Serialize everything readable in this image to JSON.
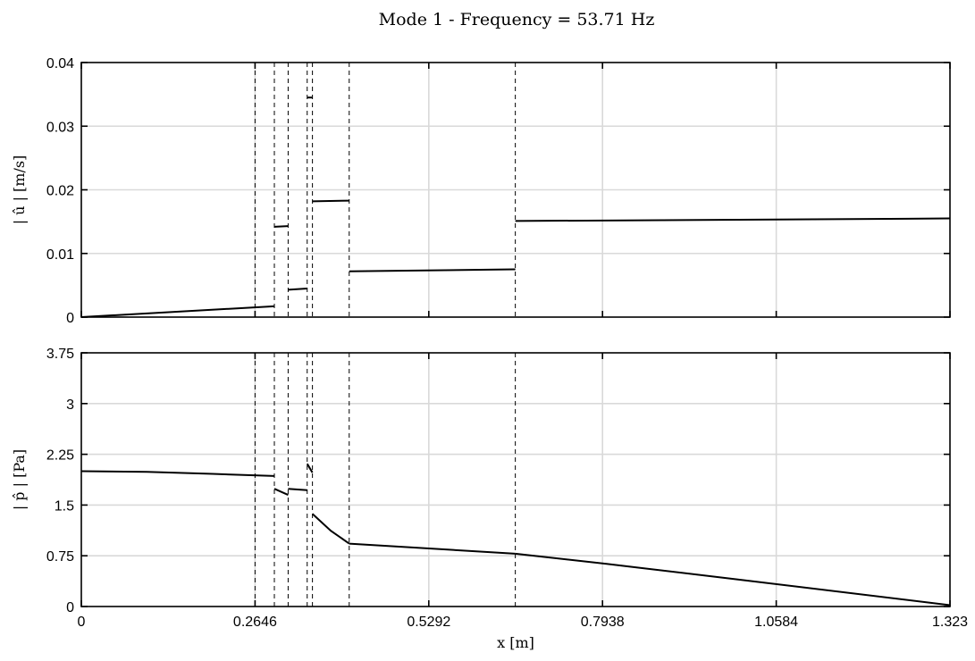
{
  "title": "Mode 1 - Frequency = 53.71 Hz",
  "colors": {
    "line": "#000000",
    "grid": "#d9d9d9"
  },
  "chart_data": [
    {
      "type": "line",
      "ylabel": "| û | [m/s]",
      "xlabel": "",
      "xlim": [
        0,
        1.323
      ],
      "ylim": [
        0,
        0.04
      ],
      "grid": true,
      "xticks": [
        0,
        0.2646,
        0.5292,
        0.7938,
        1.0584,
        1.323
      ],
      "xtick_labels": [],
      "yticks": [
        0,
        0.01,
        0.02,
        0.03,
        0.04
      ],
      "ytick_labels": [
        "0",
        "0.01",
        "0.02",
        "0.03",
        "0.04"
      ],
      "vlines": [
        0.2646,
        0.294,
        0.315,
        0.344,
        0.352,
        0.408,
        0.661
      ],
      "series": [
        {
          "segments": [
            {
              "x": [
                0,
                0.294
              ],
              "y": [
                0,
                0.0017
              ]
            },
            {
              "x": [
                0.294,
                0.315
              ],
              "y": [
                0.0142,
                0.0143
              ]
            },
            {
              "x": [
                0.315,
                0.344
              ],
              "y": [
                0.0043,
                0.0045
              ]
            },
            {
              "x": [
                0.344,
                0.352
              ],
              "y": [
                0.0345,
                0.0345
              ]
            },
            {
              "x": [
                0.352,
                0.408
              ],
              "y": [
                0.0182,
                0.0183
              ]
            },
            {
              "x": [
                0.408,
                0.661
              ],
              "y": [
                0.0072,
                0.0075
              ]
            },
            {
              "x": [
                0.661,
                1.323
              ],
              "y": [
                0.0151,
                0.0155
              ]
            }
          ]
        }
      ]
    },
    {
      "type": "line",
      "ylabel": "| p̂ | [Pa]",
      "xlabel": "x [m]",
      "xlim": [
        0,
        1.323
      ],
      "ylim": [
        0,
        3.75
      ],
      "grid": true,
      "xticks": [
        0,
        0.2646,
        0.5292,
        0.7938,
        1.0584,
        1.323
      ],
      "xtick_labels": [
        "0",
        "0.2646",
        "0.5292",
        "0.7938",
        "1.0584",
        "1.323"
      ],
      "yticks": [
        0,
        0.75,
        1.5,
        2.25,
        3,
        3.75
      ],
      "ytick_labels": [
        "0",
        "0.75",
        "1.5",
        "2.25",
        "3",
        "3.75"
      ],
      "vlines": [
        0.2646,
        0.294,
        0.315,
        0.344,
        0.352,
        0.408,
        0.661
      ],
      "series": [
        {
          "segments": [
            {
              "x": [
                0,
                0.1,
                0.2,
                0.294
              ],
              "y": [
                2.0,
                1.99,
                1.96,
                1.93
              ]
            },
            {
              "x": [
                0.294,
                0.315
              ],
              "y": [
                1.74,
                1.65
              ]
            },
            {
              "x": [
                0.315,
                0.344
              ],
              "y": [
                1.74,
                1.72
              ]
            },
            {
              "x": [
                0.344,
                0.352
              ],
              "y": [
                2.11,
                1.98
              ]
            },
            {
              "x": [
                0.352,
                0.38,
                0.408
              ],
              "y": [
                1.37,
                1.12,
                0.93
              ]
            },
            {
              "x": [
                0.408,
                0.661
              ],
              "y": [
                0.93,
                0.78
              ]
            },
            {
              "x": [
                0.661,
                0.8,
                1.0,
                1.323
              ],
              "y": [
                0.78,
                0.63,
                0.4,
                0.02
              ]
            }
          ]
        }
      ]
    }
  ]
}
